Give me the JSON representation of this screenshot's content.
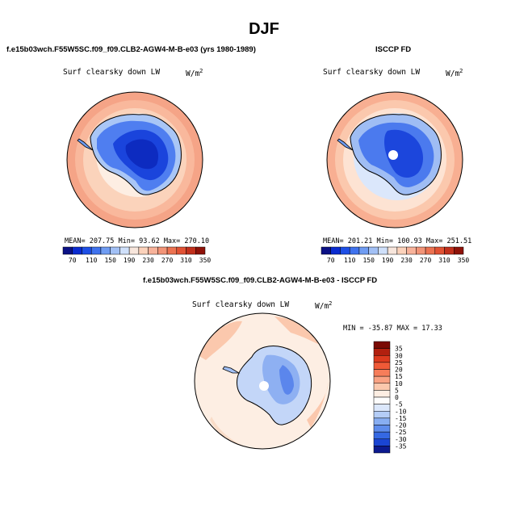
{
  "title": "DJF",
  "panels": [
    {
      "heading": "f.e15b03wch.F55W5SC.f09_f09.CLB2-AGW4-M-B-e03 (yrs 1980-1989)",
      "variable": "Surf clearsky down LW",
      "units_base": "W/m",
      "units_exp": "2",
      "stats": "MEAN= 207.75    Min=  93.62    Max= 270.10"
    },
    {
      "heading": "ISCCP FD",
      "variable": "Surf clearsky down LW",
      "units_base": "W/m",
      "units_exp": "2",
      "stats": "MEAN= 201.21    Min= 100.93    Max= 251.51"
    },
    {
      "heading": "f.e15b03wch.F55W5SC.f09_f09.CLB2-AGW4-M-B-e03 - ISCCP FD",
      "variable": "Surf clearsky down LW",
      "units_base": "W/m",
      "units_exp": "2",
      "stats": "MIN = -35.87 MAX =  17.33"
    }
  ],
  "chart_data": [
    {
      "type": "heatmap",
      "projection": "south-polar-stereographic",
      "title": "f.e15b03wch.F55W5SC.f09_f09.CLB2-AGW4-M-B-e03 (yrs 1980-1989)",
      "variable": "Surf clearsky down LW",
      "units": "W/m^2",
      "mean": 207.75,
      "min": 93.62,
      "max": 270.1,
      "colorbar_labels": [
        "70",
        "110",
        "150",
        "190",
        "230",
        "270",
        "310",
        "350"
      ],
      "colorbar_colors": [
        "#0b1185",
        "#0a2bd0",
        "#1e4fe6",
        "#3f72ee",
        "#6f9cf2",
        "#a2c0f5",
        "#cfe0fa",
        "#f7e6dc",
        "#fbd2bb",
        "#f7b29a",
        "#f29477",
        "#ec7251",
        "#e15234",
        "#c1301c",
        "#8e1209"
      ],
      "legend_position": "bottom"
    },
    {
      "type": "heatmap",
      "projection": "south-polar-stereographic",
      "title": "ISCCP FD",
      "variable": "Surf clearsky down LW",
      "units": "W/m^2",
      "mean": 201.21,
      "min": 100.93,
      "max": 251.51,
      "colorbar_labels": [
        "70",
        "110",
        "150",
        "190",
        "230",
        "270",
        "310",
        "350"
      ],
      "colorbar_colors": [
        "#0b1185",
        "#0a2bd0",
        "#1e4fe6",
        "#3f72ee",
        "#6f9cf2",
        "#a2c0f5",
        "#cfe0fa",
        "#f7e6dc",
        "#fbd2bb",
        "#f7b29a",
        "#f29477",
        "#ec7251",
        "#e15234",
        "#c1301c",
        "#8e1209"
      ],
      "legend_position": "bottom"
    },
    {
      "type": "heatmap",
      "projection": "south-polar-stereographic",
      "title": "f.e15b03wch.F55W5SC.f09_f09.CLB2-AGW4-M-B-e03 - ISCCP FD",
      "variable": "Surf clearsky down LW",
      "units": "W/m^2",
      "min": -35.87,
      "max": 17.33,
      "colorbar_labels": [
        "35",
        "30",
        "25",
        "20",
        "15",
        "10",
        "5",
        "0",
        "-5",
        "-10",
        "-15",
        "-20",
        "-25",
        "-30",
        "-35"
      ],
      "colorbar_colors": [
        "#7a0a04",
        "#b2200f",
        "#dc3a1e",
        "#ef5a37",
        "#f67d5a",
        "#f9a283",
        "#fbc8ad",
        "#fdeee3",
        "#fdfdfd",
        "#dbe7fb",
        "#b4cdf7",
        "#88aef2",
        "#5e8cec",
        "#3568e3",
        "#1a45d3",
        "#0c1a8f"
      ],
      "legend_position": "right"
    }
  ]
}
